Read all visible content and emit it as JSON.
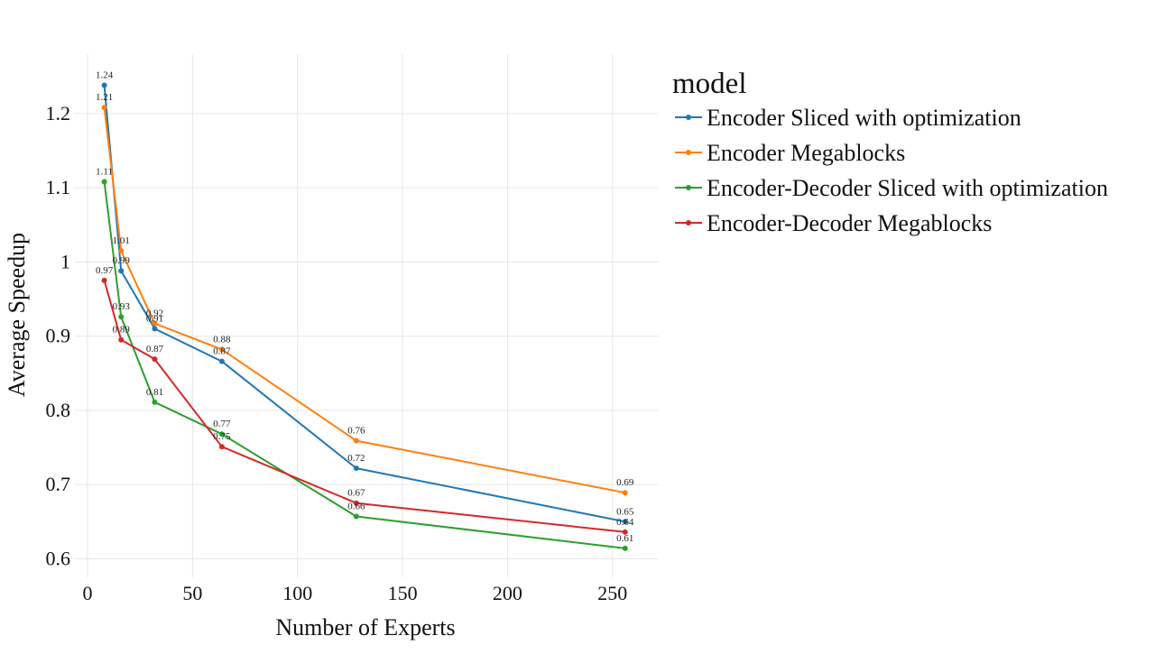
{
  "chart_data": {
    "type": "line",
    "xlabel": "Number of Experts",
    "ylabel": "Average Speedup",
    "xlim": [
      -6,
      272
    ],
    "ylim": [
      0.575,
      1.28
    ],
    "xticks": [
      0,
      50,
      100,
      150,
      200,
      250
    ],
    "xtick_labels": [
      "0",
      "50",
      "100",
      "150",
      "200",
      "250"
    ],
    "yticks": [
      0.6,
      0.7,
      0.8,
      0.9,
      1.0,
      1.1,
      1.2
    ],
    "ytick_labels": [
      "0.6",
      "0.7",
      "0.8",
      "0.9",
      "1",
      "1.1",
      "1.2"
    ],
    "grid": true,
    "legend": {
      "title": "model",
      "position": "right"
    },
    "x": [
      8,
      16,
      32,
      64,
      128,
      256
    ],
    "series": [
      {
        "name": "Encoder Sliced with optimization",
        "color": "#1f77b4",
        "values": [
          1.238,
          0.988,
          0.91,
          0.866,
          0.722,
          0.65
        ],
        "labels": [
          "1.24",
          "0.99",
          "0.91",
          "0.87",
          "0.72",
          "0.65"
        ]
      },
      {
        "name": "Encoder Megablocks",
        "color": "#ff7f0e",
        "values": [
          1.208,
          1.015,
          0.917,
          0.882,
          0.759,
          0.689
        ],
        "labels": [
          "1.21",
          "1.01",
          "0.92",
          "0.88",
          "0.76",
          "0.69"
        ]
      },
      {
        "name": "Encoder-Decoder Sliced with optimization",
        "color": "#2ca02c",
        "values": [
          1.108,
          0.926,
          0.811,
          0.768,
          0.657,
          0.614
        ],
        "labels": [
          "1.11",
          "0.93",
          "0.81",
          "0.77",
          "0.66",
          "0.61"
        ]
      },
      {
        "name": "Encoder-Decoder Megablocks",
        "color": "#d62728",
        "values": [
          0.975,
          0.895,
          0.869,
          0.751,
          0.675,
          0.636
        ],
        "labels": [
          "0.97",
          "0.89",
          "0.87",
          "0.75",
          "0.67",
          "0.64"
        ]
      }
    ]
  }
}
